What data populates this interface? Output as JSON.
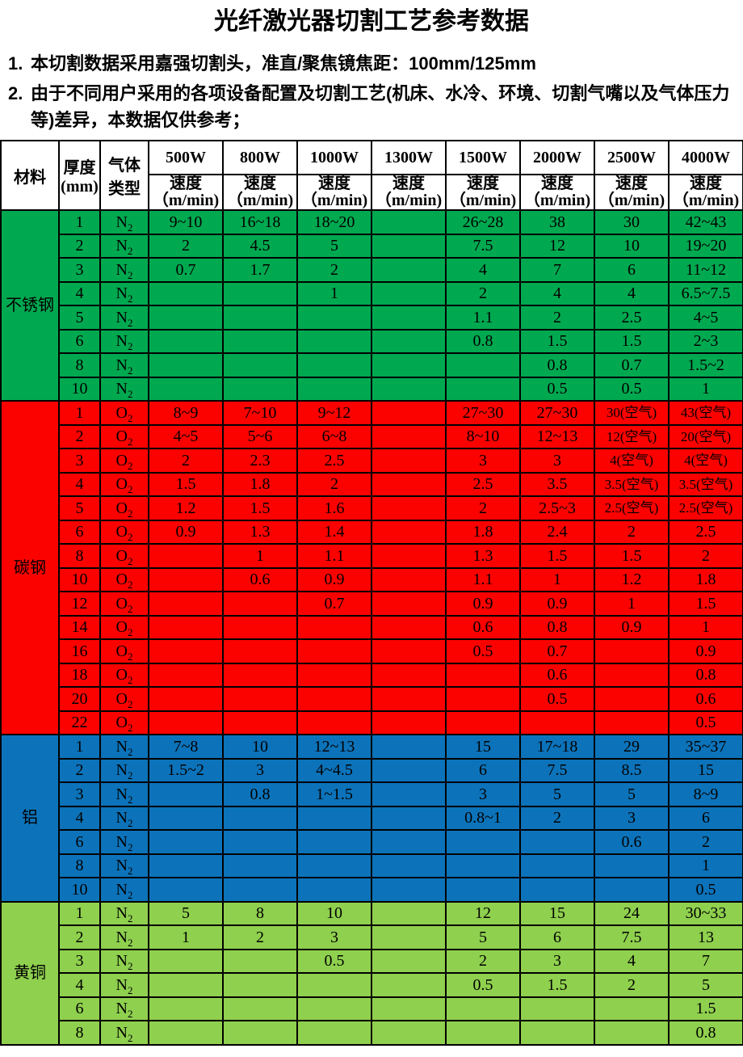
{
  "title": "光纤激光器切割工艺参考数据",
  "notes": [
    {
      "num": "1.",
      "text": "本切割数据采用嘉强切割头，准直/聚焦镜焦距：100mm/125mm"
    },
    {
      "num": "2.",
      "text": "由于不同用户采用的各项设备配置及切割工艺(机床、水冷、环境、切割气嘴以及气体压力等)差异，本数据仅供参考；"
    }
  ],
  "table": {
    "header": {
      "material": "材料",
      "thickness_line1": "厚度",
      "thickness_line2": "(mm)",
      "gas_line1": "气体",
      "gas_line2": "类型",
      "powers": [
        "500W",
        "800W",
        "1000W",
        "1300W",
        "1500W",
        "2000W",
        "2500W",
        "4000W"
      ],
      "speed_label": "速度",
      "speed_unit": "（m/min)"
    },
    "sections": [
      {
        "material": "不锈钢",
        "color": "#00A950",
        "gas": "N2",
        "rows": [
          {
            "thickness": "1",
            "speeds": [
              "9~10",
              "16~18",
              "18~20",
              "",
              "26~28",
              "38",
              "30",
              "42~43"
            ]
          },
          {
            "thickness": "2",
            "speeds": [
              "2",
              "4.5",
              "5",
              "",
              "7.5",
              "12",
              "10",
              "19~20"
            ]
          },
          {
            "thickness": "3",
            "speeds": [
              "0.7",
              "1.7",
              "2",
              "",
              "4",
              "7",
              "6",
              "11~12"
            ]
          },
          {
            "thickness": "4",
            "speeds": [
              "",
              "",
              "1",
              "",
              "2",
              "4",
              "4",
              "6.5~7.5"
            ]
          },
          {
            "thickness": "5",
            "speeds": [
              "",
              "",
              "",
              "",
              "1.1",
              "2",
              "2.5",
              "4~5"
            ]
          },
          {
            "thickness": "6",
            "speeds": [
              "",
              "",
              "",
              "",
              "0.8",
              "1.5",
              "1.5",
              "2~3"
            ]
          },
          {
            "thickness": "8",
            "speeds": [
              "",
              "",
              "",
              "",
              "",
              "0.8",
              "0.7",
              "1.5~2"
            ]
          },
          {
            "thickness": "10",
            "speeds": [
              "",
              "",
              "",
              "",
              "",
              "0.5",
              "0.5",
              "1"
            ]
          }
        ]
      },
      {
        "material": "碳钢",
        "color": "#FB0200",
        "gas": "O2",
        "rows": [
          {
            "thickness": "1",
            "speeds": [
              "8~9",
              "7~10",
              "9~12",
              "",
              "27~30",
              "27~30",
              "30(空气)",
              "43(空气)"
            ]
          },
          {
            "thickness": "2",
            "speeds": [
              "4~5",
              "5~6",
              "6~8",
              "",
              "8~10",
              "12~13",
              "12(空气)",
              "20(空气)"
            ]
          },
          {
            "thickness": "3",
            "speeds": [
              "2",
              "2.3",
              "2.5",
              "",
              "3",
              "3",
              "4(空气)",
              "4(空气)"
            ]
          },
          {
            "thickness": "4",
            "speeds": [
              "1.5",
              "1.8",
              "2",
              "",
              "2.5",
              "3.5",
              "3.5(空气)",
              "3.5(空气)"
            ]
          },
          {
            "thickness": "5",
            "speeds": [
              "1.2",
              "1.5",
              "1.6",
              "",
              "2",
              "2.5~3",
              "2.5(空气)",
              "2.5(空气)"
            ]
          },
          {
            "thickness": "6",
            "speeds": [
              "0.9",
              "1.3",
              "1.4",
              "",
              "1.8",
              "2.4",
              "2",
              "2.5"
            ]
          },
          {
            "thickness": "8",
            "speeds": [
              "",
              "1",
              "1.1",
              "",
              "1.3",
              "1.5",
              "1.5",
              "2"
            ]
          },
          {
            "thickness": "10",
            "speeds": [
              "",
              "0.6",
              "0.9",
              "",
              "1.1",
              "1",
              "1.2",
              "1.8"
            ]
          },
          {
            "thickness": "12",
            "speeds": [
              "",
              "",
              "0.7",
              "",
              "0.9",
              "0.9",
              "1",
              "1.5"
            ]
          },
          {
            "thickness": "14",
            "speeds": [
              "",
              "",
              "",
              "",
              "0.6",
              "0.8",
              "0.9",
              "1"
            ]
          },
          {
            "thickness": "16",
            "speeds": [
              "",
              "",
              "",
              "",
              "0.5",
              "0.7",
              "",
              "0.9"
            ]
          },
          {
            "thickness": "18",
            "speeds": [
              "",
              "",
              "",
              "",
              "",
              "0.6",
              "",
              "0.8"
            ]
          },
          {
            "thickness": "20",
            "speeds": [
              "",
              "",
              "",
              "",
              "",
              "0.5",
              "",
              "0.6"
            ]
          },
          {
            "thickness": "22",
            "speeds": [
              "",
              "",
              "",
              "",
              "",
              "",
              "",
              "0.5"
            ]
          }
        ]
      },
      {
        "material": "铝",
        "color": "#0C73BA",
        "gas": "N2",
        "rows": [
          {
            "thickness": "1",
            "speeds": [
              "7~8",
              "10",
              "12~13",
              "",
              "15",
              "17~18",
              "29",
              "35~37"
            ]
          },
          {
            "thickness": "2",
            "speeds": [
              "1.5~2",
              "3",
              "4~4.5",
              "",
              "6",
              "7.5",
              "8.5",
              "15"
            ]
          },
          {
            "thickness": "3",
            "speeds": [
              "",
              "0.8",
              "1~1.5",
              "",
              "3",
              "5",
              "5",
              "8~9"
            ]
          },
          {
            "thickness": "4",
            "speeds": [
              "",
              "",
              "",
              "",
              "0.8~1",
              "2",
              "3",
              "6"
            ]
          },
          {
            "thickness": "6",
            "speeds": [
              "",
              "",
              "",
              "",
              "",
              "",
              "0.6",
              "2"
            ]
          },
          {
            "thickness": "8",
            "speeds": [
              "",
              "",
              "",
              "",
              "",
              "",
              "",
              "1"
            ]
          },
          {
            "thickness": "10",
            "speeds": [
              "",
              "",
              "",
              "",
              "",
              "",
              "",
              "0.5"
            ]
          }
        ]
      },
      {
        "material": "黄铜",
        "color": "#8FD04E",
        "gas": "N2",
        "rows": [
          {
            "thickness": "1",
            "speeds": [
              "5",
              "8",
              "10",
              "",
              "12",
              "15",
              "24",
              "30~33"
            ]
          },
          {
            "thickness": "2",
            "speeds": [
              "1",
              "2",
              "3",
              "",
              "5",
              "6",
              "7.5",
              "13"
            ]
          },
          {
            "thickness": "3",
            "speeds": [
              "",
              "",
              "0.5",
              "",
              "2",
              "3",
              "4",
              "7"
            ]
          },
          {
            "thickness": "4",
            "speeds": [
              "",
              "",
              "",
              "",
              "0.5",
              "1.5",
              "2",
              "5"
            ]
          },
          {
            "thickness": "6",
            "speeds": [
              "",
              "",
              "",
              "",
              "",
              "",
              "",
              "1.5"
            ]
          },
          {
            "thickness": "8",
            "speeds": [
              "",
              "",
              "",
              "",
              "",
              "",
              "",
              "0.8"
            ]
          }
        ]
      }
    ]
  }
}
